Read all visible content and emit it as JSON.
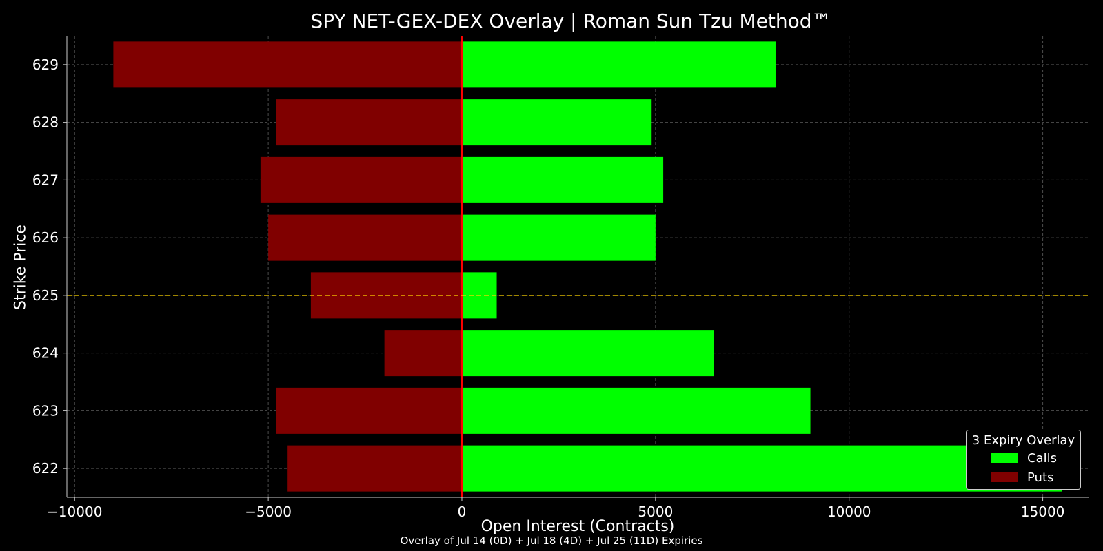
{
  "chart_data": {
    "type": "bar",
    "orientation": "horizontal",
    "title": "SPY NET-GEX-DEX Overlay | Roman Sun Tzu Method™",
    "subtitle": "Overlay of Jul 14 (0D) + Jul 18 (4D) + Jul 25 (11D) Expiries",
    "xlabel": "Open Interest (Contracts)",
    "ylabel": "Strike Price",
    "xlim": [
      -10200,
      16200
    ],
    "x_ticks": [
      -10000,
      -5000,
      0,
      5000,
      10000,
      15000
    ],
    "x_tick_labels": [
      "−10000",
      "−5000",
      "0",
      "5000",
      "10000",
      "15000"
    ],
    "categories": [
      "622",
      "623",
      "624",
      "625",
      "626",
      "627",
      "628",
      "629"
    ],
    "series": [
      {
        "name": "Calls",
        "color": "#00ff00",
        "values": [
          15500,
          9000,
          6500,
          900,
          5000,
          5200,
          4900,
          8100
        ]
      },
      {
        "name": "Puts",
        "color": "#800000",
        "values": [
          -4500,
          -4800,
          -2000,
          -3900,
          -5000,
          -5200,
          -4800,
          -9000
        ]
      }
    ],
    "zero_line_color": "#ff0000",
    "reference_line": {
      "strike": "625",
      "color": "#ffd700",
      "style": "dashed"
    },
    "grid": true,
    "legend": {
      "title": "3 Expiry Overlay",
      "position": "lower-right"
    }
  }
}
